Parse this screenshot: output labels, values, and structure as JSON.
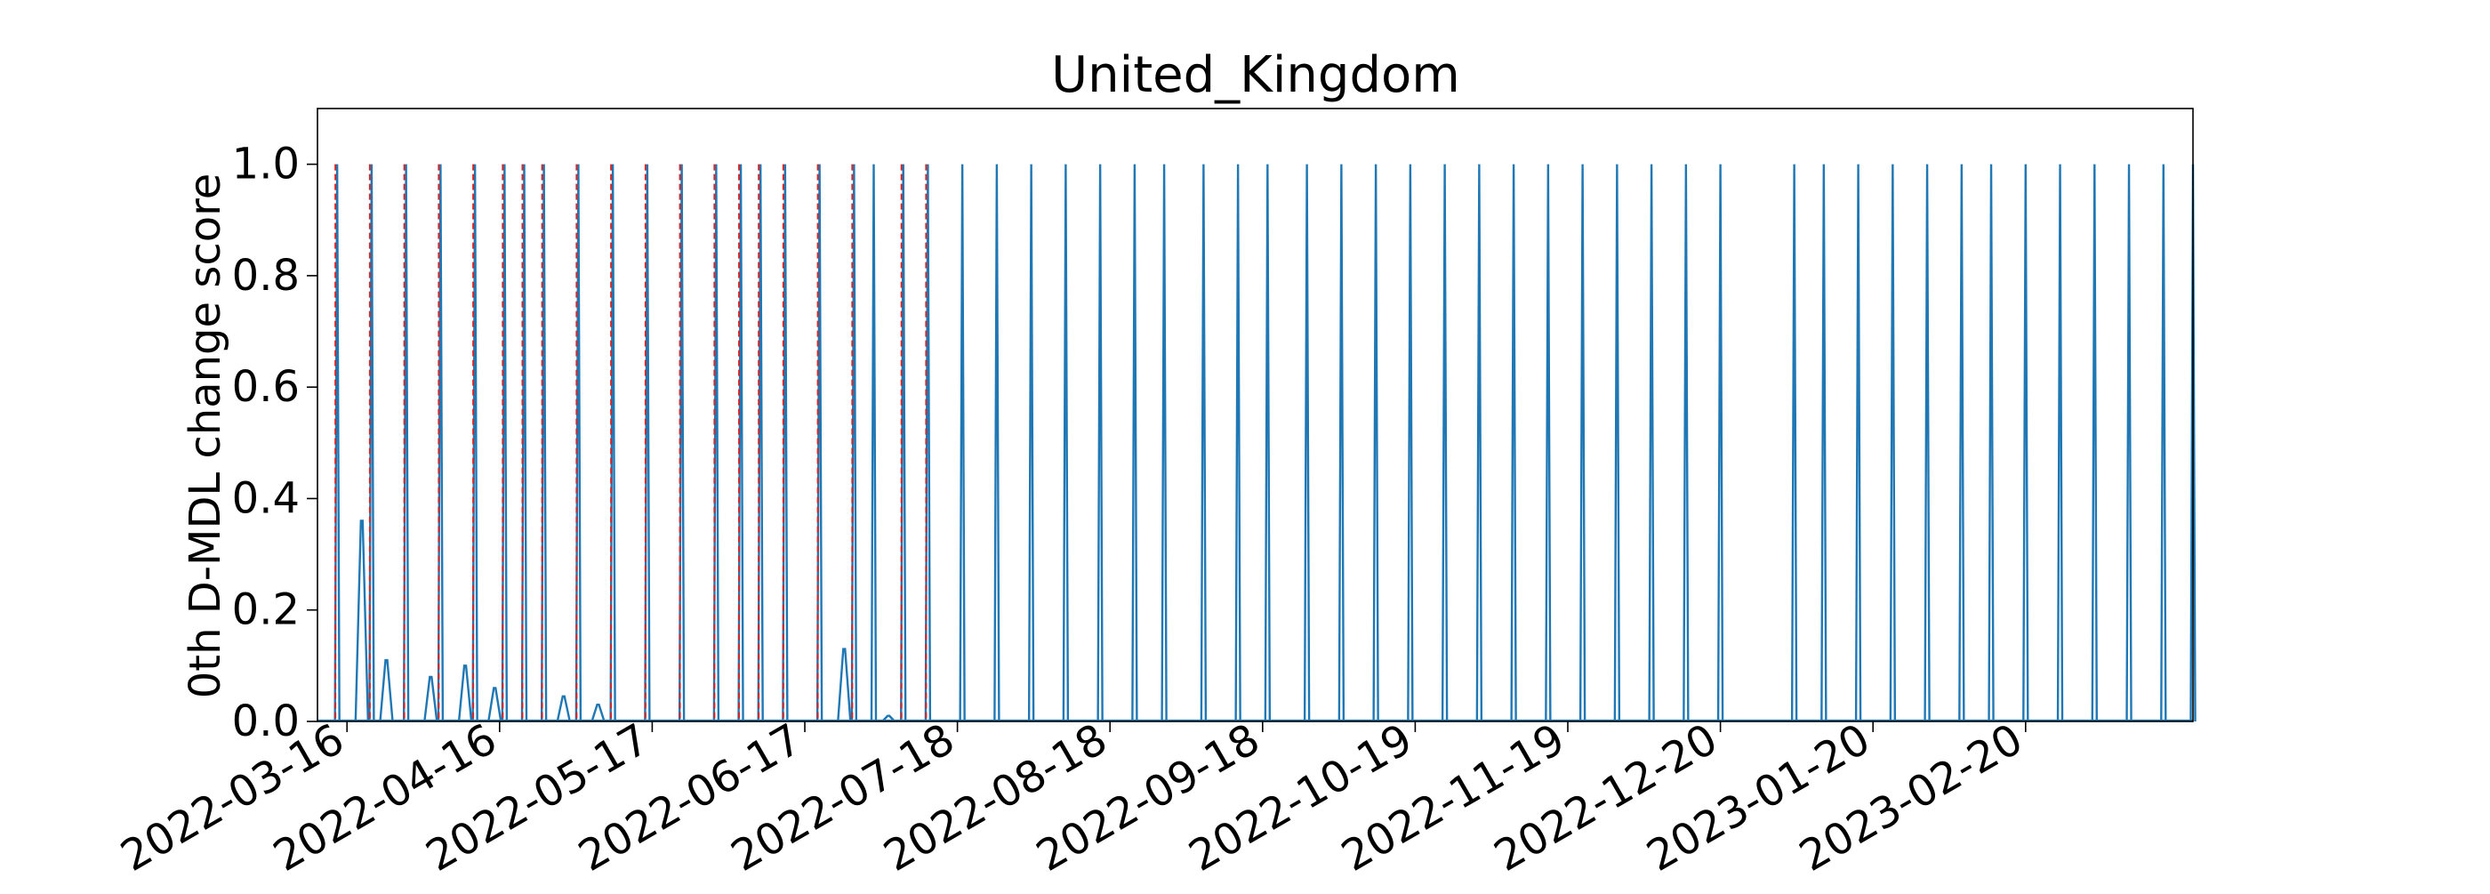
{
  "chart_data": {
    "type": "line",
    "title": "United_Kingdom",
    "xlabel": "",
    "ylabel": "0th D-MDL change score",
    "ylim": [
      0.0,
      1.1
    ],
    "xlim": [
      "2022-03-10",
      "2023-03-26"
    ],
    "grid": false,
    "y_ticks": [
      0.0,
      0.2,
      0.4,
      0.6,
      0.8,
      1.0
    ],
    "y_tick_labels": [
      "0.0",
      "0.2",
      "0.4",
      "0.6",
      "0.8",
      "1.0"
    ],
    "x_ticks": [
      "2022-03-16",
      "2022-04-16",
      "2022-05-17",
      "2022-06-17",
      "2022-07-18",
      "2022-08-18",
      "2022-09-18",
      "2022-10-19",
      "2022-11-19",
      "2022-12-20",
      "2023-01-20",
      "2023-02-20"
    ],
    "x_tick_labels": [
      "2022-03-16",
      "2022-04-16",
      "2022-05-17",
      "2022-06-17",
      "2022-07-18",
      "2022-08-18",
      "2022-09-18",
      "2022-10-19",
      "2022-11-19",
      "2022-12-20",
      "2023-01-20",
      "2023-02-20"
    ],
    "series": [
      {
        "line_color": "#1f77b4",
        "spike_dates": [
          "2022-03-14",
          "2022-03-21",
          "2022-03-28",
          "2022-04-04",
          "2022-04-11",
          "2022-04-17",
          "2022-04-21",
          "2022-04-25",
          "2022-05-02",
          "2022-05-09",
          "2022-05-16",
          "2022-05-23",
          "2022-05-30",
          "2022-06-04",
          "2022-06-08",
          "2022-06-13",
          "2022-06-20",
          "2022-06-27",
          "2022-07-01",
          "2022-07-07",
          "2022-07-12",
          "2022-07-19",
          "2022-07-26",
          "2022-08-02",
          "2022-08-09",
          "2022-08-16",
          "2022-08-23",
          "2022-08-29",
          "2022-09-06",
          "2022-09-13",
          "2022-09-19",
          "2022-09-27",
          "2022-10-04",
          "2022-10-11",
          "2022-10-18",
          "2022-10-25",
          "2022-11-01",
          "2022-11-08",
          "2022-11-15",
          "2022-11-22",
          "2022-11-29",
          "2022-12-06",
          "2022-12-13",
          "2022-12-20",
          "2023-01-04",
          "2023-01-10",
          "2023-01-17",
          "2023-01-24",
          "2023-01-31",
          "2023-02-07",
          "2023-02-13",
          "2023-02-20",
          "2023-02-27",
          "2023-03-06",
          "2023-03-13",
          "2023-03-20",
          "2023-03-26"
        ],
        "small_bumps": [
          {
            "date": "2022-03-19",
            "value": 0.36
          },
          {
            "date": "2022-03-24",
            "value": 0.11
          },
          {
            "date": "2022-04-02",
            "value": 0.08
          },
          {
            "date": "2022-04-09",
            "value": 0.1
          },
          {
            "date": "2022-04-15",
            "value": 0.06
          },
          {
            "date": "2022-04-29",
            "value": 0.045
          },
          {
            "date": "2022-05-06",
            "value": 0.03
          },
          {
            "date": "2022-06-25",
            "value": 0.13
          },
          {
            "date": "2022-07-04",
            "value": 0.01
          }
        ]
      },
      {
        "line_color": "#d62728",
        "line_style": "dashed",
        "alarm_dates": [
          "2022-03-14",
          "2022-03-21",
          "2022-03-28",
          "2022-04-04",
          "2022-04-11",
          "2022-04-17",
          "2022-04-21",
          "2022-04-25",
          "2022-05-02",
          "2022-05-09",
          "2022-05-16",
          "2022-05-23",
          "2022-05-30",
          "2022-06-04",
          "2022-06-08",
          "2022-06-13",
          "2022-06-20",
          "2022-06-27",
          "2022-07-07",
          "2022-07-12"
        ]
      }
    ]
  }
}
